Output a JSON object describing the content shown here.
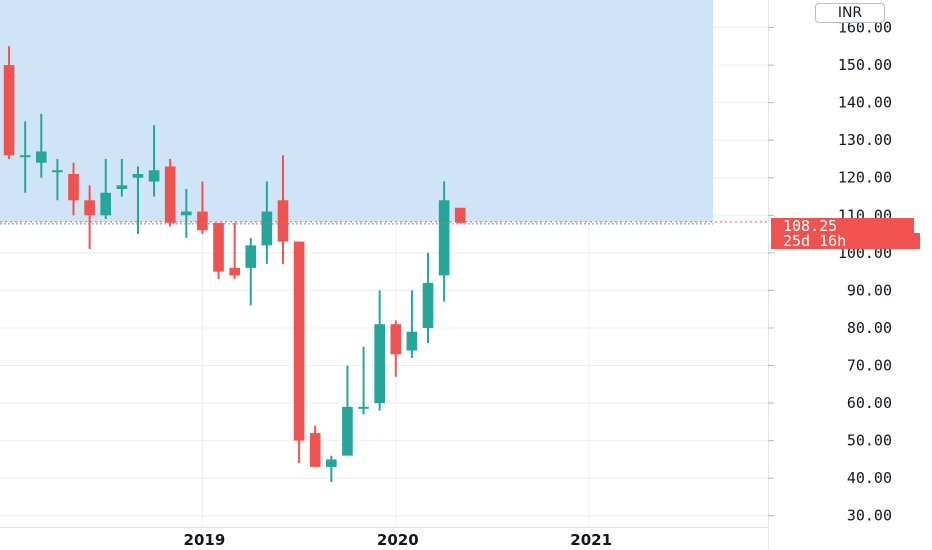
{
  "currency_button": "INR",
  "current_price_label": "108.25",
  "countdown_label": "25d 16h",
  "colors": {
    "up": "#26a69a",
    "down": "#ef5350",
    "range_fill": "#cfe5f7",
    "price_line": "#ef5350",
    "grid": "#eeeeee",
    "axis_text": "#131722"
  },
  "chart_data": {
    "type": "candlestick",
    "interval": "monthly",
    "y_ticks": [
      "30.00",
      "40.00",
      "50.00",
      "60.00",
      "70.00",
      "80.00",
      "90.00",
      "100.00",
      "110.00",
      "120.00",
      "130.00",
      "140.00",
      "150.00",
      "160.00"
    ],
    "ylim": [
      27,
      166
    ],
    "x_ticks": [
      {
        "label": "2019",
        "date": "2019-01"
      },
      {
        "label": "2020",
        "date": "2020-01"
      },
      {
        "label": "2021",
        "date": "2021-01"
      }
    ],
    "xlim": [
      "2018-01",
      "2021-09"
    ],
    "current_price": 108.25,
    "highlight_range_above": 108.25,
    "candles": [
      {
        "date": "2018-01",
        "open": 150,
        "high": 155,
        "low": 125,
        "close": 126
      },
      {
        "date": "2018-02",
        "open": 126,
        "high": 135,
        "low": 116,
        "close": 126
      },
      {
        "date": "2018-03",
        "open": 124,
        "high": 137,
        "low": 120,
        "close": 127
      },
      {
        "date": "2018-04",
        "open": 122,
        "high": 125,
        "low": 114,
        "close": 122
      },
      {
        "date": "2018-05",
        "open": 121,
        "high": 124,
        "low": 110,
        "close": 114
      },
      {
        "date": "2018-06",
        "open": 114,
        "high": 118,
        "low": 101,
        "close": 110
      },
      {
        "date": "2018-07",
        "open": 110,
        "high": 125,
        "low": 109,
        "close": 116
      },
      {
        "date": "2018-08",
        "open": 117,
        "high": 125,
        "low": 115,
        "close": 118
      },
      {
        "date": "2018-09",
        "open": 120,
        "high": 123,
        "low": 105,
        "close": 121
      },
      {
        "date": "2018-10",
        "open": 119,
        "high": 134,
        "low": 115,
        "close": 122
      },
      {
        "date": "2018-11",
        "open": 123,
        "high": 125,
        "low": 107,
        "close": 108
      },
      {
        "date": "2018-12",
        "open": 110,
        "high": 117,
        "low": 104,
        "close": 111
      },
      {
        "date": "2019-01",
        "open": 111,
        "high": 119,
        "low": 105,
        "close": 106
      },
      {
        "date": "2019-02",
        "open": 108,
        "high": 108,
        "low": 93,
        "close": 95
      },
      {
        "date": "2019-03",
        "open": 96,
        "high": 108,
        "low": 93,
        "close": 94
      },
      {
        "date": "2019-04",
        "open": 96,
        "high": 104,
        "low": 86,
        "close": 102
      },
      {
        "date": "2019-05",
        "open": 102,
        "high": 119,
        "low": 97,
        "close": 111
      },
      {
        "date": "2019-06",
        "open": 114,
        "high": 126,
        "low": 97,
        "close": 103
      },
      {
        "date": "2019-07",
        "open": 103,
        "high": 103,
        "low": 44,
        "close": 50
      },
      {
        "date": "2019-08",
        "open": 52,
        "high": 54,
        "low": 43,
        "close": 43
      },
      {
        "date": "2019-09",
        "open": 43,
        "high": 46,
        "low": 39,
        "close": 45
      },
      {
        "date": "2019-10",
        "open": 46,
        "high": 70,
        "low": 46,
        "close": 59
      },
      {
        "date": "2019-11",
        "open": 59,
        "high": 75,
        "low": 57,
        "close": 59
      },
      {
        "date": "2019-12",
        "open": 60,
        "high": 90,
        "low": 58,
        "close": 81
      },
      {
        "date": "2020-01",
        "open": 81,
        "high": 82,
        "low": 67,
        "close": 73
      },
      {
        "date": "2020-02",
        "open": 74,
        "high": 90,
        "low": 72,
        "close": 79
      },
      {
        "date": "2020-03",
        "open": 80,
        "high": 100,
        "low": 76,
        "close": 92
      },
      {
        "date": "2020-04",
        "open": 94,
        "high": 119,
        "low": 87,
        "close": 114
      },
      {
        "date": "2020-05",
        "open": 112,
        "high": 112,
        "low": 108,
        "close": 108
      }
    ]
  }
}
